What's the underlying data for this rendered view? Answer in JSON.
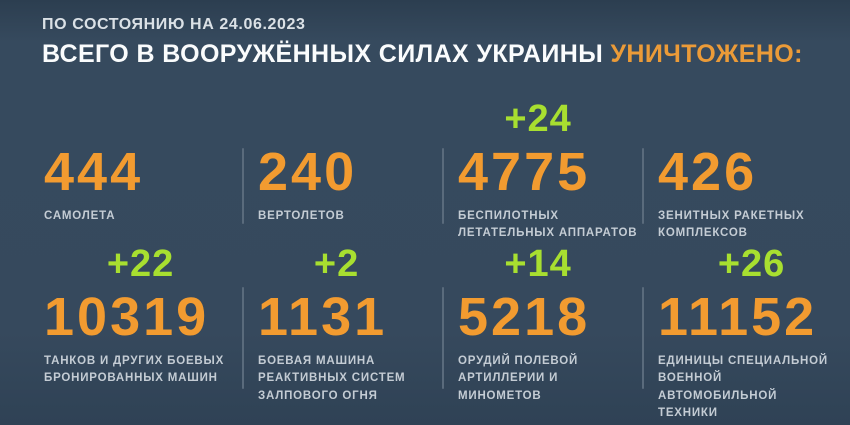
{
  "header": {
    "date_line": "ПО СОСТОЯНИЮ НА 24.06.2023",
    "title_main": "ВСЕГО В ВООРУЖЁННЫХ СИЛАХ УКРАИНЫ",
    "title_accent": "УНИЧТОЖЕНО:"
  },
  "colors": {
    "background": "#36495d",
    "number_orange": "#f29b30",
    "delta_green": "#a8df30",
    "label_gray": "#c4ccd4",
    "divider_gray": "#5a6b7c",
    "title_white": "#fafcfd"
  },
  "stats": {
    "rows": [
      [
        {
          "delta": "",
          "value": "444",
          "label": "САМОЛЕТА"
        },
        {
          "delta": "",
          "value": "240",
          "label": "ВЕРТОЛЕТОВ"
        },
        {
          "delta": "+24",
          "value": "4775",
          "label": "БЕСПИЛОТНЫХ\nЛЕТАТЕЛЬНЫХ АППАРАТОВ"
        },
        {
          "delta": "",
          "value": "426",
          "label": "ЗЕНИТНЫХ РАКЕТНЫХ\nКОМПЛЕКСОВ"
        }
      ],
      [
        {
          "delta": "+22",
          "value": "10319",
          "label": "ТАНКОВ И ДРУГИХ БОЕВЫХ\nБРОНИРОВАННЫХ МАШИН"
        },
        {
          "delta": "+2",
          "value": "1131",
          "label": "БОЕВАЯ МАШИНА\nРЕАКТИВНЫХ СИСТЕМ\nЗАЛПОВОГО ОГНЯ"
        },
        {
          "delta": "+14",
          "value": "5218",
          "label": "ОРУДИЙ ПОЛЕВОЙ\nАРТИЛЛЕРИИ И МИНОМЕТОВ"
        },
        {
          "delta": "+26",
          "value": "11152",
          "label": "ЕДИНИЦЫ СПЕЦИАЛЬНОЙ\nВОЕННОЙ АВТОМОБИЛЬНОЙ\nТЕХНИКИ"
        }
      ]
    ]
  },
  "chart_data": {
    "type": "table",
    "title": "ВСЕГО В ВООРУЖЁННЫХ СИЛАХ УКРАИНЫ УНИЧТОЖЕНО:",
    "as_of_date": "24.06.2023",
    "categories": [
      "САМОЛЕТА",
      "ВЕРТОЛЕТОВ",
      "БЕСПИЛОТНЫХ ЛЕТАТЕЛЬНЫХ АППАРАТОВ",
      "ЗЕНИТНЫХ РАКЕТНЫХ КОМПЛЕКСОВ",
      "ТАНКОВ И ДРУГИХ БОЕВЫХ БРОНИРОВАННЫХ МАШИН",
      "БОЕВАЯ МАШИНА РЕАКТИВНЫХ СИСТЕМ ЗАЛПОВОГО ОГНЯ",
      "ОРУДИЙ ПОЛЕВОЙ АРТИЛЛЕРИИ И МИНОМЕТОВ",
      "ЕДИНИЦЫ СПЕЦИАЛЬНОЙ ВОЕННОЙ АВТОМОБИЛЬНОЙ ТЕХНИКИ"
    ],
    "values": [
      444,
      240,
      4775,
      426,
      10319,
      1131,
      5218,
      11152
    ],
    "daily_increase": [
      null,
      null,
      24,
      null,
      22,
      2,
      14,
      26
    ],
    "layout": "2 rows x 4 columns, green increments above orange totals, gray uppercase labels below"
  }
}
